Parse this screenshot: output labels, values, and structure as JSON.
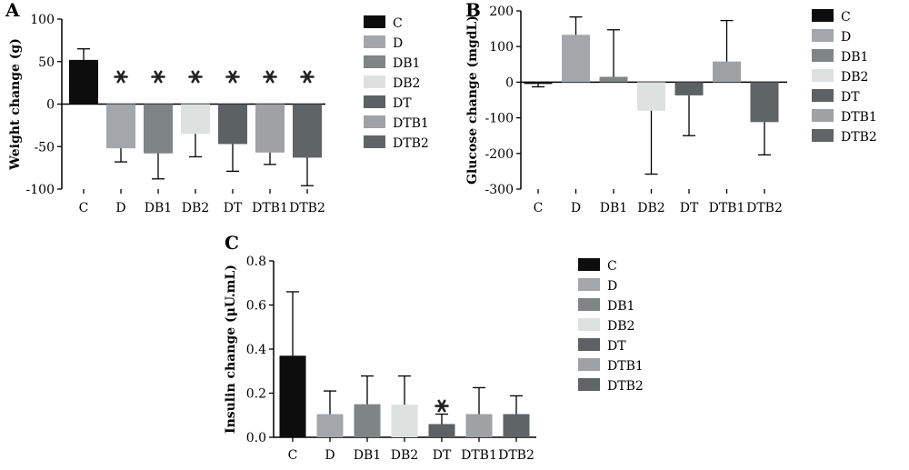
{
  "colors": {
    "C": "#0d0d0d",
    "D": "#a3a7ab",
    "DB1": "#7f8484",
    "DB2": "#dde1e0",
    "DT": "#5c6163",
    "DTB1": "#9ea2a5",
    "DTB2": "#5f6466",
    "axis": "#000000"
  },
  "chart_data": [
    {
      "panel_label": "A",
      "type": "bar",
      "ylabel": "Weight change (g)",
      "categories": [
        "C",
        "D",
        "DB1",
        "DB2",
        "DT",
        "DTB1",
        "DTB2"
      ],
      "values": [
        52,
        -52,
        -58,
        -35,
        -47,
        -57,
        -63
      ],
      "error": [
        13,
        16,
        30,
        27,
        32,
        14,
        33
      ],
      "significance": [
        "",
        "*",
        "*",
        "*",
        "*",
        "*",
        "*"
      ],
      "ylim": [
        -100,
        100
      ],
      "yticks": [
        100,
        50,
        0,
        -50,
        -100
      ],
      "legend": [
        "C",
        "D",
        "DB1",
        "DB2",
        "DT",
        "DTB1",
        "DTB2"
      ],
      "legend_position": "right",
      "grid": false
    },
    {
      "panel_label": "B",
      "type": "bar",
      "ylabel": "Glucose change (mgdL)",
      "categories": [
        "C",
        "D",
        "DB1",
        "DB2",
        "DT",
        "DTB1",
        "DTB2"
      ],
      "values": [
        -5,
        133,
        15,
        -80,
        -37,
        58,
        -112
      ],
      "error": [
        8,
        50,
        132,
        178,
        113,
        115,
        92
      ],
      "significance": [
        "",
        "",
        "",
        "",
        "",
        "",
        ""
      ],
      "ylim": [
        -300,
        200
      ],
      "yticks": [
        200,
        100,
        0,
        -100,
        -200,
        -300
      ],
      "legend": [
        "C",
        "D",
        "DB1",
        "DB2",
        "DT",
        "DTB1",
        "DTB2"
      ],
      "legend_position": "right",
      "grid": false
    },
    {
      "panel_label": "C",
      "type": "bar",
      "ylabel": "Insulin change (μU.mL)",
      "categories": [
        "C",
        "D",
        "DB1",
        "DB2",
        "DT",
        "DTB1",
        "DTB2"
      ],
      "values": [
        0.37,
        0.105,
        0.15,
        0.148,
        0.06,
        0.105,
        0.105
      ],
      "error": [
        0.29,
        0.105,
        0.128,
        0.13,
        0.045,
        0.12,
        0.083
      ],
      "significance": [
        "",
        "",
        "",
        "",
        "*",
        "",
        ""
      ],
      "ylim": [
        0,
        0.8
      ],
      "yticks": [
        0.8,
        0.6,
        0.4,
        0.2,
        0.0
      ],
      "tick_labels": [
        "0.8",
        "0.6",
        "0.4",
        "0.2",
        "0.0"
      ],
      "legend": [
        "C",
        "D",
        "DB1",
        "DB2",
        "DT",
        "DTB1",
        "DTB2"
      ],
      "legend_position": "right",
      "grid": false
    }
  ]
}
